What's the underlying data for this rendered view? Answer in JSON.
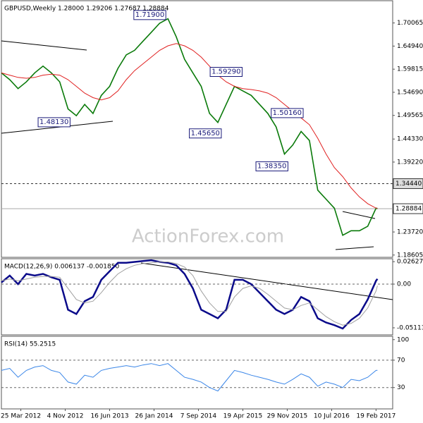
{
  "chart_data": [
    {
      "type": "line",
      "title": "GBPUSD,Weekly",
      "subtitle": "1.28000 1.29206 1.27687 1.28884",
      "watermark": "ActionForex.com",
      "x": [
        -14,
        -8,
        -2,
        4,
        10,
        16,
        22,
        28,
        34,
        40,
        46,
        52,
        58,
        64,
        70,
        76,
        82,
        88,
        94,
        100,
        106,
        112,
        118,
        124,
        130,
        136,
        142,
        148,
        154,
        160,
        166,
        172,
        178,
        184,
        190,
        196,
        202,
        208,
        214,
        220,
        226,
        232,
        238,
        244,
        250,
        256,
        257
      ],
      "series": [
        {
          "name": "GBPUSD",
          "color": "#0a7a0a",
          "values": [
            1.59,
            1.575,
            1.555,
            1.57,
            1.59,
            1.605,
            1.59,
            1.57,
            1.51,
            1.495,
            1.52,
            1.5,
            1.54,
            1.56,
            1.6,
            1.63,
            1.64,
            1.66,
            1.68,
            1.7,
            1.71,
            1.67,
            1.62,
            1.59,
            1.56,
            1.5,
            1.48,
            1.52,
            1.56,
            1.55,
            1.54,
            1.52,
            1.5,
            1.47,
            1.41,
            1.43,
            1.46,
            1.44,
            1.33,
            1.31,
            1.29,
            1.23,
            1.24,
            1.24,
            1.25,
            1.29,
            1.28884
          ]
        },
        {
          "name": "MA",
          "color": "#e02020",
          "values": [
            1.59,
            1.585,
            1.58,
            1.578,
            1.58,
            1.585,
            1.587,
            1.585,
            1.575,
            1.56,
            1.545,
            1.535,
            1.53,
            1.535,
            1.55,
            1.575,
            1.595,
            1.61,
            1.625,
            1.64,
            1.65,
            1.655,
            1.65,
            1.64,
            1.625,
            1.605,
            1.585,
            1.57,
            1.56,
            1.555,
            1.553,
            1.55,
            1.545,
            1.535,
            1.52,
            1.505,
            1.49,
            1.475,
            1.445,
            1.41,
            1.38,
            1.36,
            1.335,
            1.315,
            1.3,
            1.29,
            1.29
          ]
        }
      ],
      "annotations": [
        {
          "x": 105,
          "value": 1.719,
          "label": "1.71900"
        },
        {
          "x": 160,
          "value": 1.5929,
          "label": "1.59290"
        },
        {
          "x": 36,
          "value": 1.4813,
          "label": "1.48130"
        },
        {
          "x": 145,
          "value": 1.4565,
          "label": "1.45650"
        },
        {
          "x": 204,
          "value": 1.5016,
          "label": "1.50160"
        },
        {
          "x": 193,
          "value": 1.3835,
          "label": "1.38350"
        }
      ],
      "levels": [
        {
          "value": 1.3444,
          "label": "1.34440"
        },
        {
          "value": 1.28884,
          "label": "1.28884"
        }
      ],
      "xlim": [
        -14,
        268
      ],
      "ylim": [
        1.181,
        1.75
      ],
      "yticks": [
        1.70065,
        {
          "value": 1.6494,
          "label": "1.64940"
        },
        1.59815,
        {
          "value": 1.5469,
          "label": "1.54690"
        },
        1.49565,
        {
          "value": 1.4433,
          "label": "1.44330"
        },
        {
          "value": 1.3922,
          "label": "1.39220"
        },
        {
          "value": 1.2372,
          "label": "1.23720"
        },
        1.18605
      ]
    },
    {
      "type": "line",
      "title": "MACD(12,26,9) 0.006137 -0.001850",
      "x": [
        -14,
        -8,
        -2,
        4,
        10,
        16,
        22,
        28,
        34,
        40,
        46,
        52,
        58,
        64,
        70,
        76,
        82,
        88,
        94,
        100,
        106,
        112,
        118,
        124,
        130,
        136,
        142,
        148,
        154,
        160,
        166,
        172,
        178,
        184,
        190,
        196,
        202,
        208,
        214,
        220,
        226,
        232,
        238,
        244,
        250,
        256,
        257
      ],
      "series": [
        {
          "name": "MACD",
          "color": "#0a0a8a",
          "values": [
            0.002,
            0.01,
            0.0,
            0.012,
            0.01,
            0.012,
            0.008,
            0.005,
            -0.03,
            -0.035,
            -0.02,
            -0.015,
            0.005,
            0.015,
            0.025,
            0.025,
            0.026,
            0.027,
            0.028,
            0.026,
            0.025,
            0.022,
            0.012,
            -0.005,
            -0.03,
            -0.035,
            -0.04,
            -0.03,
            0.005,
            0.005,
            0.0,
            -0.01,
            -0.02,
            -0.03,
            -0.035,
            -0.03,
            -0.015,
            -0.02,
            -0.04,
            -0.045,
            -0.048,
            -0.052,
            -0.042,
            -0.035,
            -0.018,
            0.004,
            0.006137
          ]
        },
        {
          "name": "Signal",
          "color": "#a0a0a0",
          "values": [
            0.004,
            0.006,
            0.004,
            0.006,
            0.008,
            0.009,
            0.009,
            0.008,
            -0.005,
            -0.018,
            -0.022,
            -0.02,
            -0.01,
            0.002,
            0.012,
            0.018,
            0.022,
            0.024,
            0.025,
            0.026,
            0.026,
            0.024,
            0.02,
            0.01,
            -0.008,
            -0.022,
            -0.032,
            -0.032,
            -0.015,
            -0.005,
            -0.002,
            -0.005,
            -0.012,
            -0.02,
            -0.028,
            -0.03,
            -0.025,
            -0.022,
            -0.03,
            -0.038,
            -0.044,
            -0.048,
            -0.046,
            -0.04,
            -0.028,
            -0.008,
            -0.00185
          ]
        }
      ],
      "xlim": [
        -14,
        268
      ],
      "ylim": [
        -0.0594,
        0.0297
      ],
      "yticks": [
        0.026276,
        {
          "value": 0,
          "label": "0.00"
        },
        -0.051137
      ],
      "dashed_lines": [
        0
      ]
    },
    {
      "type": "line",
      "title": "RSI(14) 55.2515",
      "x": [
        -14,
        -8,
        -2,
        4,
        10,
        16,
        22,
        28,
        34,
        40,
        46,
        52,
        58,
        64,
        70,
        76,
        82,
        88,
        94,
        100,
        106,
        112,
        118,
        124,
        130,
        136,
        142,
        148,
        154,
        160,
        166,
        172,
        178,
        184,
        190,
        196,
        202,
        208,
        214,
        220,
        226,
        232,
        238,
        244,
        250,
        256,
        257
      ],
      "series": [
        {
          "name": "RSI",
          "color": "#3a86e8",
          "values": [
            55,
            58,
            45,
            55,
            60,
            62,
            55,
            52,
            38,
            35,
            48,
            45,
            55,
            58,
            60,
            62,
            60,
            63,
            65,
            62,
            65,
            55,
            45,
            42,
            38,
            30,
            25,
            40,
            55,
            52,
            48,
            45,
            42,
            38,
            35,
            42,
            50,
            45,
            32,
            38,
            35,
            30,
            42,
            40,
            45,
            55,
            55.2515
          ]
        }
      ],
      "xlim": [
        -14,
        268
      ],
      "ylim": [
        -1.2,
        104.9
      ],
      "yticks": [
        100,
        70,
        30
      ],
      "dashed_lines": [
        70,
        30
      ],
      "xticks": [
        {
          "value": 0,
          "label": "25 Mar 2012"
        },
        {
          "value": 32,
          "label": "4 Nov 2012"
        },
        {
          "value": 64,
          "label": "16 Jun 2013"
        },
        {
          "value": 96,
          "label": "26 Jan 2014"
        },
        {
          "value": 128,
          "label": "7 Sep 2014"
        },
        {
          "value": 160,
          "label": "19 Apr 2015"
        },
        {
          "value": 192,
          "label": "29 Nov 2015"
        },
        {
          "value": 224,
          "label": "10 Jul 2016"
        },
        {
          "value": 256,
          "label": "19 Feb 2017"
        }
      ]
    }
  ]
}
